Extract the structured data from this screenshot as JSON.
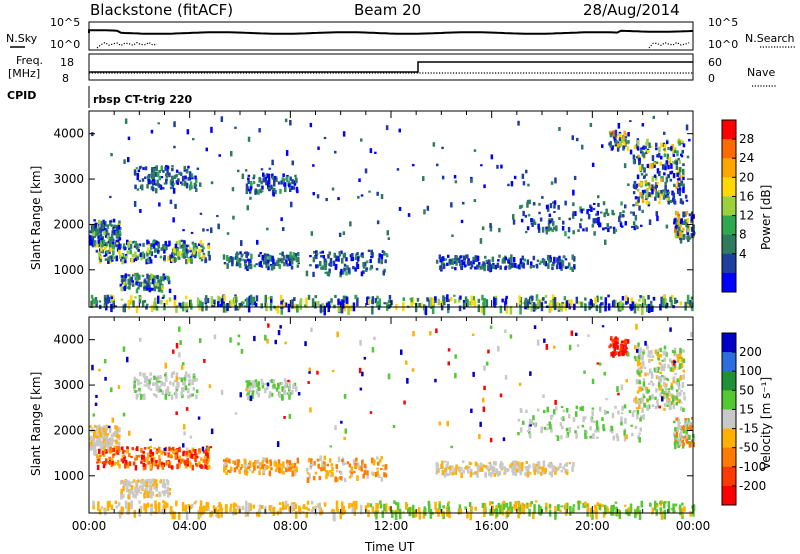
{
  "header": {
    "station": "Blackstone (fitACF)",
    "beam": "Beam 20",
    "date": "28/Aug/2014"
  },
  "panel_labels": {
    "n_sky": "N.Sky",
    "n_search": "N.Search",
    "freq": "Freq.",
    "freq_unit": "[MHz]",
    "nave": "Nave",
    "cpid": "CPID",
    "cpid_value": "rbsp CT-trig 220",
    "nsky_hi": "10^5",
    "nsky_lo": "10^0",
    "nsearch_hi": "10^5",
    "nsearch_lo": "10^0",
    "freq_hi": "18",
    "freq_lo": "8",
    "nave_hi": "60",
    "nave_lo": "0"
  },
  "colorbars": {
    "power": {
      "label": "Power [dB]",
      "ticks": [
        "28",
        "24",
        "20",
        "16",
        "12",
        "8",
        "4"
      ],
      "colors": [
        "#ff0000",
        "#ff6a00",
        "#ffa500",
        "#ffd800",
        "#9bd23c",
        "#2fa84f",
        "#2f7b5e",
        "#1f3fa0",
        "#0000ff"
      ]
    },
    "velocity": {
      "label": "Velocity [m s⁻¹]",
      "ticks": [
        "200",
        "100",
        "50",
        "15",
        "-15",
        "-50",
        "-100",
        "-200"
      ],
      "colors": [
        "#0000c8",
        "#2c6ee0",
        "#1f8f3a",
        "#52c832",
        "#c8c8c8",
        "#ffb000",
        "#ff7a00",
        "#ff3a00",
        "#ff0000"
      ]
    }
  },
  "chart_data": [
    {
      "type": "heatmap",
      "title": "Power",
      "ylabel": "Slant Range [km]",
      "xlabel": "",
      "ylim": [
        180,
        4500
      ],
      "yticks": [
        "4000",
        "3000",
        "2000",
        "1000"
      ],
      "xticks": [
        "00:00",
        "04:00",
        "08:00",
        "12:00",
        "16:00",
        "20:00",
        "00:00"
      ],
      "xlim_hours": [
        0,
        24
      ]
    },
    {
      "type": "heatmap",
      "title": "Velocity",
      "ylabel": "Slant Range [km]",
      "xlabel": "Time UT",
      "ylim": [
        180,
        4500
      ],
      "yticks": [
        "4000",
        "3000",
        "2000",
        "1000"
      ],
      "xticks": [
        "00:00",
        "04:00",
        "08:00",
        "12:00",
        "16:00",
        "20:00",
        "00:00"
      ],
      "xlim_hours": [
        0,
        24
      ]
    }
  ]
}
